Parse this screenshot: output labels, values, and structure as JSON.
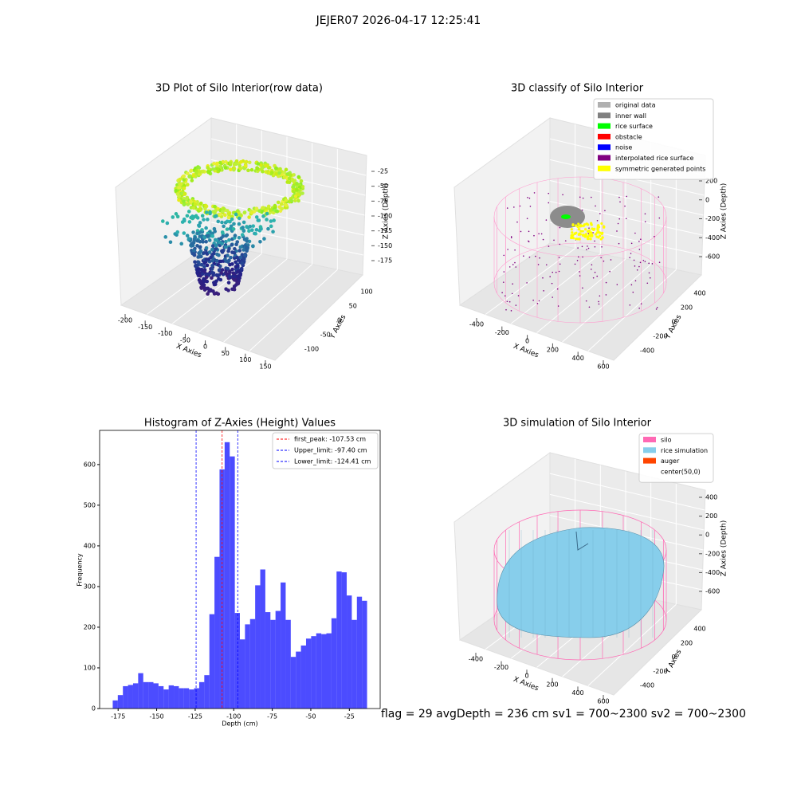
{
  "title": "JEJER07 2026-04-17 12:25:41",
  "chart_data": [
    {
      "type": "scatter3d",
      "title": "3D Plot of Silo Interior(row data)",
      "xlabel": "X Axies",
      "ylabel": "Y Axies",
      "zlabel": "Z Axies (Depth)",
      "xticks": [
        -200,
        -150,
        -100,
        -50,
        0,
        50,
        100,
        150
      ],
      "yticks": [
        -100,
        -50,
        0,
        50,
        100
      ],
      "zticks": [
        -25,
        -50,
        -75,
        -100,
        -125,
        -150,
        -175
      ]
    },
    {
      "type": "scatter3d",
      "title": "3D classify of Silo Interior",
      "xlabel": "X Axies",
      "ylabel": "Y Axies",
      "zlabel": "Z Axies (Depth)",
      "xticks": [
        -400,
        -200,
        0,
        200,
        400,
        600
      ],
      "yticks": [
        -400,
        -200,
        0,
        200,
        400
      ],
      "zticks": [
        200,
        0,
        -200,
        -400,
        -600
      ],
      "series": [
        {
          "name": "original data",
          "color": "#b0b0b0"
        },
        {
          "name": "inner wall",
          "color": "#808080"
        },
        {
          "name": "rice surface",
          "color": "#00ff00"
        },
        {
          "name": "obstacle",
          "color": "#ff0000"
        },
        {
          "name": "noise",
          "color": "#0000ff"
        },
        {
          "name": "interpolated rice surface",
          "color": "#800080"
        },
        {
          "name": "symmetric generated points",
          "color": "#ffff00"
        }
      ]
    },
    {
      "type": "histogram",
      "title": "Histogram of Z-Axies (Height) Values",
      "xlabel": "Depth (cm)",
      "ylabel": "Frequency",
      "color": "#0000ff",
      "bins": [
        -178.5,
        -175.2,
        -171.9,
        -168.6,
        -165.3,
        -162,
        -158.7,
        -155.4,
        -152.1,
        -148.8,
        -145.5,
        -142.2,
        -138.9,
        -135.6,
        -132.3,
        -129,
        -125.7,
        -122.4,
        -119.1,
        -115.8,
        -112.5,
        -109.2,
        -105.9,
        -102.6,
        -99.3,
        -96,
        -92.7,
        -89.4,
        -86.1,
        -82.8,
        -79.5,
        -76.2,
        -72.9,
        -69.6,
        -66.3,
        -63,
        -59.7,
        -56.4,
        -53.1,
        -49.8,
        -46.5,
        -43.2,
        -39.9,
        -36.6,
        -33.3,
        -30,
        -26.7,
        -23.4,
        -20.1,
        -16.8,
        -13.5
      ],
      "values": [
        20,
        33,
        55,
        58,
        62,
        87,
        65,
        65,
        62,
        55,
        47,
        57,
        55,
        50,
        50,
        47,
        50,
        65,
        82,
        232,
        373,
        588,
        655,
        620,
        235,
        170,
        207,
        220,
        303,
        342,
        237,
        218,
        240,
        310,
        218,
        127,
        140,
        155,
        172,
        178,
        185,
        183,
        185,
        222,
        337,
        335,
        278,
        218,
        275,
        265
      ],
      "xlim": [
        -187,
        -5
      ],
      "ylim": [
        0,
        684
      ],
      "xticks": [
        -175,
        -150,
        -125,
        -100,
        -75,
        -50,
        -25
      ],
      "yticks": [
        0,
        100,
        200,
        300,
        400,
        500,
        600
      ],
      "vlines": [
        {
          "name": "first_peak: -107.53 cm",
          "value": -107.53,
          "color": "#ff0000"
        },
        {
          "name": "Upper_limit: -97.40 cm",
          "value": -97.4,
          "color": "#0000ff"
        },
        {
          "name": "Lower_limit: -124.41 cm",
          "value": -124.41,
          "color": "#0000ff"
        }
      ]
    },
    {
      "type": "surface3d",
      "title": "3D simulation of Silo Interior",
      "xlabel": "X Axies",
      "ylabel": "Y Axies",
      "zlabel": "Z Axies (Depth)",
      "xticks": [
        -400,
        -200,
        0,
        200,
        400,
        600
      ],
      "yticks": [
        -400,
        -200,
        0,
        200,
        400
      ],
      "zticks": [
        400,
        200,
        0,
        -200,
        -400,
        -600
      ],
      "series": [
        {
          "name": "silo",
          "color": "#ff69b4"
        },
        {
          "name": "rice simulation",
          "color": "#87ceeb"
        },
        {
          "name": "auger",
          "color": "#ff4500"
        },
        {
          "name": "center(50,0)",
          "color": "#ffffff"
        }
      ]
    }
  ],
  "footer": "flag = 29  avgDepth = 236 cm  sv1 = 700~2300  sv2 = 700~2300"
}
